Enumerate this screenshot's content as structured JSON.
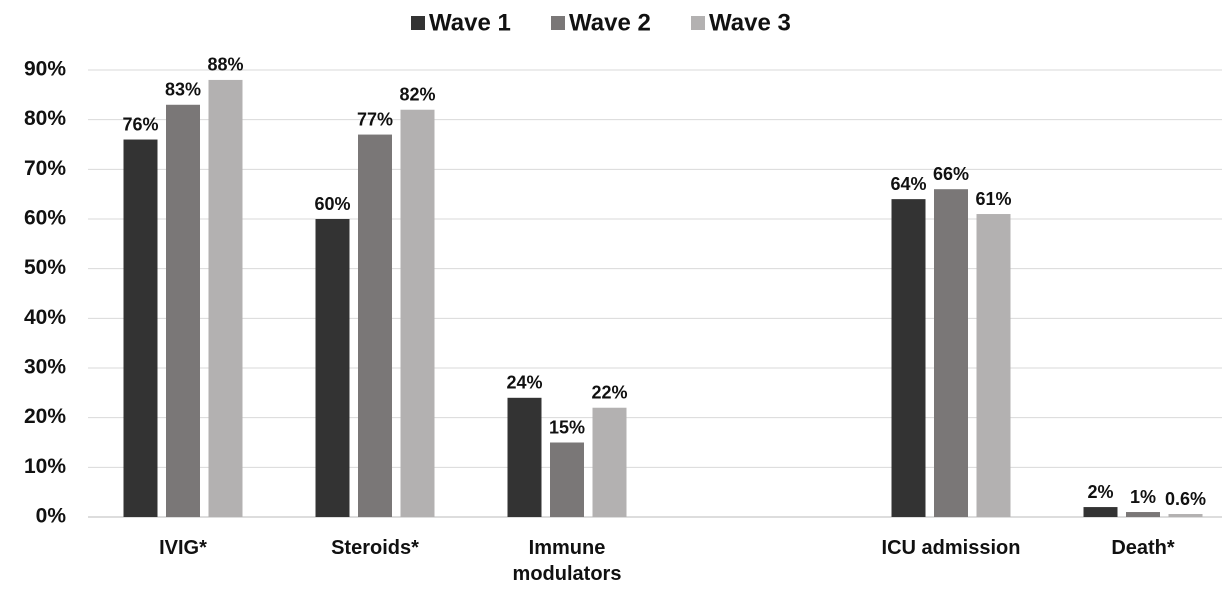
{
  "chart_data": {
    "type": "bar",
    "categories": [
      "IVIG*",
      "Steroids*",
      "Immune modulators",
      null,
      "ICU admission",
      "Death*"
    ],
    "series": [
      {
        "name": "Wave 1",
        "color": "#333333",
        "values": [
          76,
          60,
          24,
          null,
          64,
          2
        ],
        "value_labels": [
          "76%",
          "60%",
          "24%",
          null,
          "64%",
          "2%"
        ]
      },
      {
        "name": "Wave 2",
        "color": "#7a7777",
        "values": [
          83,
          77,
          15,
          null,
          66,
          1
        ],
        "value_labels": [
          "83%",
          "77%",
          "15%",
          null,
          "66%",
          "1%"
        ]
      },
      {
        "name": "Wave 3",
        "color": "#b3b1b1",
        "values": [
          88,
          82,
          22,
          null,
          61,
          0.6
        ],
        "value_labels": [
          "88%",
          "82%",
          "22%",
          null,
          "61%",
          "0.6%"
        ]
      }
    ],
    "ylim": [
      0,
      90
    ],
    "yticks": [
      {
        "value": 0,
        "label": "0%"
      },
      {
        "value": 10,
        "label": "10%"
      },
      {
        "value": 20,
        "label": "20%"
      },
      {
        "value": 30,
        "label": "30%"
      },
      {
        "value": 40,
        "label": "40%"
      },
      {
        "value": 50,
        "label": "50%"
      },
      {
        "value": 60,
        "label": "60%"
      },
      {
        "value": 70,
        "label": "70%"
      },
      {
        "value": 80,
        "label": "80%"
      },
      {
        "value": 90,
        "label": "90%"
      }
    ],
    "grid": true,
    "legend": "top"
  }
}
